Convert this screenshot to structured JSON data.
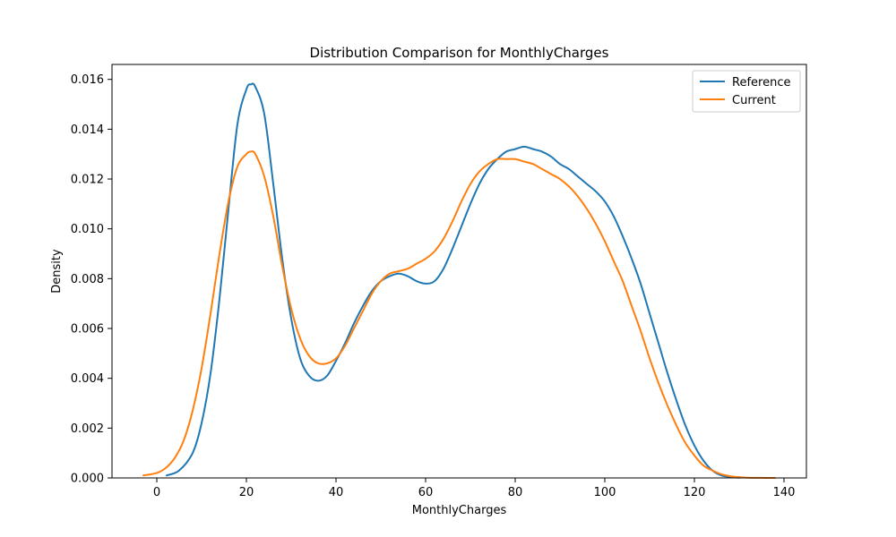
{
  "chart_data": {
    "type": "line",
    "title": "Distribution Comparison for MonthlyCharges",
    "xlabel": "MonthlyCharges",
    "ylabel": "Density",
    "xlim": [
      -10,
      145
    ],
    "ylim": [
      0,
      0.0166
    ],
    "xticks": [
      0,
      20,
      40,
      60,
      80,
      100,
      120,
      140
    ],
    "xtick_labels": [
      "0",
      "20",
      "40",
      "60",
      "80",
      "100",
      "120",
      "140"
    ],
    "yticks": [
      0,
      0.002,
      0.004,
      0.006,
      0.008,
      0.01,
      0.012,
      0.014,
      0.016
    ],
    "ytick_labels": [
      "0.000",
      "0.002",
      "0.004",
      "0.006",
      "0.008",
      "0.010",
      "0.012",
      "0.014",
      "0.016"
    ],
    "grid": false,
    "legend_position": "top-right",
    "series": [
      {
        "name": "Reference",
        "color": "#1f77b4",
        "x": [
          2.2,
          5,
          8,
          10,
          12,
          14,
          16,
          18,
          20,
          21,
          22,
          24,
          26,
          28,
          30,
          32,
          34,
          36,
          38,
          40,
          42,
          44,
          46,
          48,
          50,
          52,
          54,
          56,
          58,
          60,
          62,
          64,
          66,
          68,
          70,
          72,
          74,
          76,
          78,
          80,
          82,
          84,
          86,
          88,
          90,
          92,
          94,
          96,
          98,
          100,
          102,
          104,
          106,
          108,
          110,
          112,
          114,
          116,
          118,
          120,
          122,
          124,
          126,
          128,
          130
        ],
        "y": [
          0.0001,
          0.0003,
          0.001,
          0.0022,
          0.0042,
          0.0072,
          0.0108,
          0.0142,
          0.0156,
          0.0158,
          0.0157,
          0.0146,
          0.0118,
          0.0088,
          0.0064,
          0.0048,
          0.0041,
          0.0039,
          0.0041,
          0.0047,
          0.0054,
          0.0062,
          0.0069,
          0.0075,
          0.0079,
          0.0081,
          0.0082,
          0.0081,
          0.0079,
          0.0078,
          0.0079,
          0.0084,
          0.0092,
          0.0101,
          0.011,
          0.0118,
          0.0124,
          0.0128,
          0.0131,
          0.0132,
          0.0133,
          0.0132,
          0.0131,
          0.0129,
          0.0126,
          0.0124,
          0.0121,
          0.0118,
          0.0115,
          0.0111,
          0.0105,
          0.0097,
          0.0088,
          0.0078,
          0.0066,
          0.0054,
          0.0042,
          0.0031,
          0.0021,
          0.0013,
          0.0007,
          0.0003,
          0.0001,
          4e-05,
          1e-05
        ]
      },
      {
        "name": "Current",
        "color": "#ff7f0e",
        "x": [
          -3,
          0,
          2,
          4,
          6,
          8,
          10,
          12,
          14,
          16,
          18,
          20,
          21,
          22,
          24,
          26,
          28,
          30,
          32,
          34,
          36,
          38,
          40,
          42,
          44,
          46,
          48,
          50,
          52,
          54,
          56,
          58,
          60,
          62,
          64,
          66,
          68,
          70,
          72,
          74,
          76,
          78,
          80,
          82,
          84,
          86,
          88,
          90,
          92,
          94,
          96,
          98,
          100,
          102,
          104,
          106,
          108,
          110,
          112,
          114,
          116,
          118,
          120,
          122,
          124,
          126,
          128,
          130,
          132,
          134,
          136,
          138
        ],
        "y": [
          0.0001,
          0.0002,
          0.0004,
          0.0008,
          0.0015,
          0.0027,
          0.0044,
          0.0066,
          0.009,
          0.0111,
          0.0125,
          0.013,
          0.0131,
          0.013,
          0.0121,
          0.0105,
          0.0085,
          0.0068,
          0.0056,
          0.0049,
          0.0046,
          0.0046,
          0.0048,
          0.0053,
          0.006,
          0.0067,
          0.0074,
          0.0079,
          0.0082,
          0.0083,
          0.0084,
          0.0086,
          0.0088,
          0.0091,
          0.0096,
          0.0103,
          0.0111,
          0.0118,
          0.0123,
          0.0126,
          0.0128,
          0.0128,
          0.0128,
          0.0127,
          0.0126,
          0.0124,
          0.0122,
          0.012,
          0.0117,
          0.0113,
          0.0108,
          0.0102,
          0.0095,
          0.0087,
          0.0079,
          0.0069,
          0.0059,
          0.0048,
          0.0038,
          0.0029,
          0.0021,
          0.0014,
          0.0009,
          0.0005,
          0.0003,
          0.00015,
          7e-05,
          3e-05,
          1e-05,
          5e-06,
          2e-06,
          1e-06
        ]
      }
    ]
  }
}
